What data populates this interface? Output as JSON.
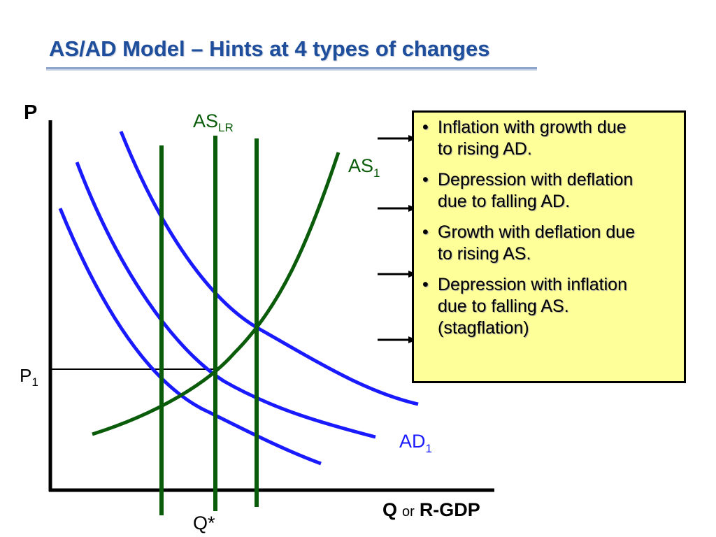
{
  "slide": {
    "title": "AS/AD Model – Hints at 4 types of changes"
  },
  "diagram": {
    "axis_p": "P",
    "axis_q_bold": "Q",
    "axis_q_or": "or",
    "axis_rgdp": "R-GDP",
    "p1_main": "P",
    "p1_sub": "1",
    "qstar": "Q*",
    "aslr_main": "AS",
    "aslr_sub": "LR",
    "as1_main": "AS",
    "as1_sub": "1",
    "ad1_main": "AD",
    "ad1_sub": "1",
    "colors": {
      "supply": "#0a5c0a",
      "demand": "#1a1aff",
      "axis": "#000000",
      "box_fill": "#ffff99",
      "title": "#1f4f9c"
    }
  },
  "hints": {
    "bullet": "•",
    "items": [
      {
        "lines": [
          "Inflation with growth due",
          "to rising AD."
        ]
      },
      {
        "lines": [
          "Depression with deflation",
          "due to falling AD."
        ]
      },
      {
        "lines": [
          "Growth with deflation due",
          "to rising AS."
        ]
      },
      {
        "lines": [
          "Depression with inflation",
          "due to falling AS.",
          "(stagflation)"
        ]
      }
    ]
  }
}
